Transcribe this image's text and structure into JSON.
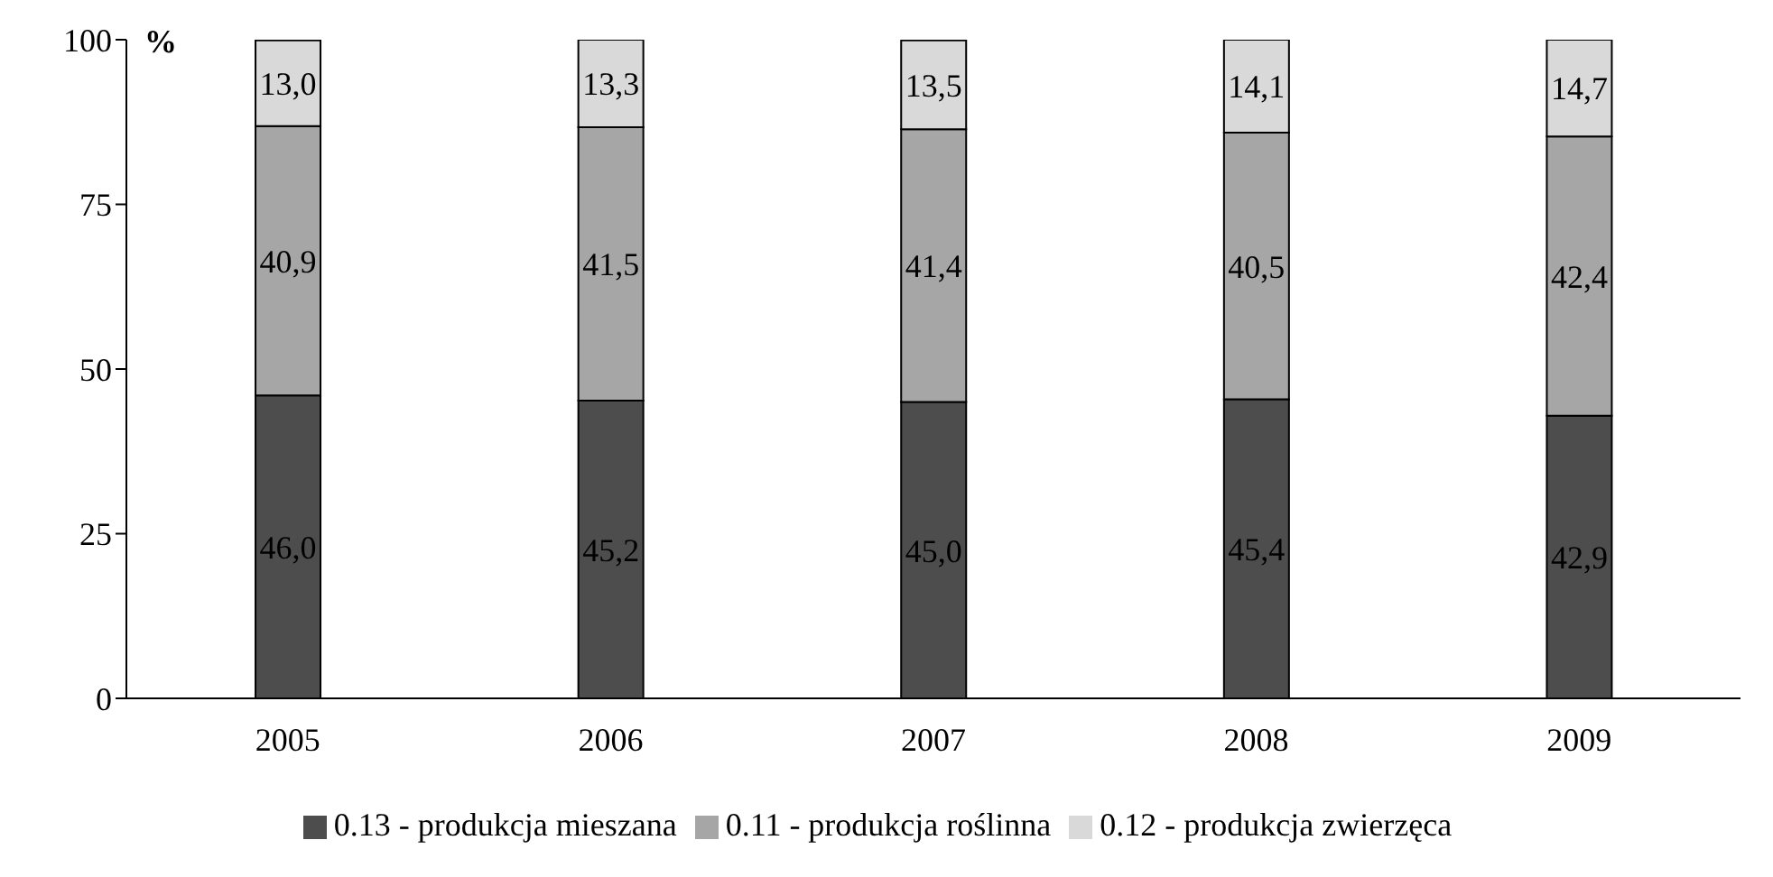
{
  "chart_data": {
    "type": "bar",
    "stacked": true,
    "ylabel": "%",
    "categories": [
      "2005",
      "2006",
      "2007",
      "2008",
      "2009"
    ],
    "series": [
      {
        "name": "0.13 - produkcja mieszana",
        "color": "#4d4d4d",
        "values": [
          46.0,
          45.2,
          45.0,
          45.4,
          42.9
        ],
        "value_labels": [
          "46,0",
          "45,2",
          "45,0",
          "45,4",
          "42,9"
        ]
      },
      {
        "name": "0.11 - produkcja roślinna",
        "color": "#a6a6a6",
        "values": [
          40.9,
          41.5,
          41.4,
          40.5,
          42.4
        ],
        "value_labels": [
          "40,9",
          "41,5",
          "41,4",
          "40,5",
          "42,4"
        ]
      },
      {
        "name": "0.12 - produkcja zwierzęca",
        "color": "#d9d9d9",
        "values": [
          13.0,
          13.3,
          13.5,
          14.1,
          14.7
        ],
        "value_labels": [
          "13,0",
          "13,3",
          "13,5",
          "14,1",
          "14,7"
        ]
      }
    ],
    "ylim": [
      0,
      100
    ],
    "yticks": [
      0,
      25,
      50,
      75,
      100
    ],
    "legend": "bottom"
  }
}
